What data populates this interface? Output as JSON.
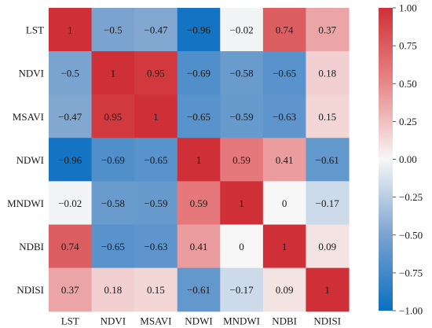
{
  "chart_data": {
    "type": "heatmap",
    "title": "",
    "xlabel": "",
    "ylabel": "",
    "row_labels": [
      "LST",
      "NDVI",
      "MSAVI",
      "NDWI",
      "MNDWI",
      "NDBI",
      "NDISI"
    ],
    "col_labels": [
      "LST",
      "NDVI",
      "MSAVI",
      "NDWI",
      "MNDWI",
      "NDBI",
      "NDISI"
    ],
    "values": [
      [
        1,
        -0.5,
        -0.47,
        -0.96,
        -0.02,
        0.74,
        0.37
      ],
      [
        -0.5,
        1,
        0.95,
        -0.69,
        -0.58,
        -0.65,
        0.18
      ],
      [
        -0.47,
        0.95,
        1,
        -0.65,
        -0.59,
        -0.63,
        0.15
      ],
      [
        -0.96,
        -0.69,
        -0.65,
        1,
        0.59,
        0.41,
        -0.61
      ],
      [
        -0.02,
        -0.58,
        -0.59,
        0.59,
        1,
        0,
        -0.17
      ],
      [
        0.74,
        -0.65,
        -0.63,
        0.41,
        0,
        1,
        0.09
      ],
      [
        0.37,
        0.18,
        0.15,
        -0.61,
        -0.17,
        0.09,
        1
      ]
    ],
    "cell_labels": [
      [
        "1",
        "−0.5",
        "−0.47",
        "−0.96",
        "−0.02",
        "0.74",
        "0.37"
      ],
      [
        "−0.5",
        "1",
        "0.95",
        "−0.69",
        "−0.58",
        "−0.65",
        "0.18"
      ],
      [
        "−0.47",
        "0.95",
        "1",
        "−0.65",
        "−0.59",
        "−0.63",
        "0.15"
      ],
      [
        "−0.96",
        "−0.69",
        "−0.65",
        "1",
        "0.59",
        "0.41",
        "−0.61"
      ],
      [
        "−0.02",
        "−0.58",
        "−0.59",
        "0.59",
        "1",
        "0",
        "−0.17"
      ],
      [
        "0.74",
        "−0.65",
        "−0.63",
        "0.41",
        "0",
        "1",
        "0.09"
      ],
      [
        "0.37",
        "0.18",
        "0.15",
        "−0.61",
        "−0.17",
        "0.09",
        "1"
      ]
    ],
    "colormap": "RdBu_r",
    "vmin": -1,
    "vmax": 1,
    "colorbar": {
      "ticks": [
        1.0,
        0.75,
        0.5,
        0.25,
        0.0,
        -0.25,
        -0.5,
        -0.75,
        -1.0
      ],
      "tick_labels": [
        "1.00",
        "0.75",
        "0.50",
        "0.25",
        "0.00",
        "−0.25",
        "−0.50",
        "−0.75",
        "−1.00"
      ],
      "placement": "right"
    },
    "colors": {
      "negative_extreme": "#0b6fc2",
      "neutral": "#f7f7f7",
      "positive_extreme": "#cf3037"
    }
  }
}
